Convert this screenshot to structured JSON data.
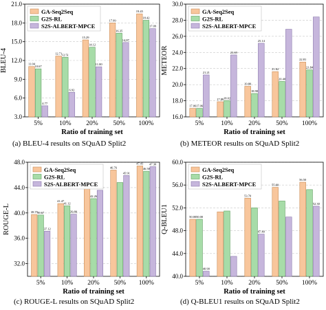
{
  "series_names": [
    "GA-Seq2Seq",
    "G2S-RL",
    "S2S-ALBERT-MPCE"
  ],
  "colors": {
    "ga": "#f8c69c",
    "g2s": "#a7dca8",
    "s2s": "#c6b6dc",
    "ga_edge": "#c98d58",
    "g2s_edge": "#5f9e5f",
    "s2s_edge": "#8b78ad"
  },
  "captions": {
    "a": "(a)  BLEU-4 results on SQuAD Split2",
    "b": "(b)  METEOR results on SQuAD Split2",
    "c": "(c)  ROUGE-L results on SQuAD Split2",
    "d": "(d)  Q-BLEU1 results on SQuAD Split2"
  },
  "chart_data": [
    {
      "id": "a",
      "type": "bar",
      "title": "",
      "xlabel": "Ratio of training set",
      "ylabel": "BLEU-4",
      "categories": [
        "5%",
        "10%",
        "20%",
        "50%",
        "100%"
      ],
      "ylim": [
        3.0,
        21.0
      ],
      "yticks": [
        "3.0",
        "6.0",
        "9.0",
        "12.0",
        "15.0",
        "18.0",
        "21.0"
      ],
      "legend": "top-left",
      "series": [
        {
          "name": "GA-Seq2Seq",
          "values": [
            11.04,
            12.71,
            15.29,
            17.99,
            19.45
          ],
          "labels": [
            "11.04",
            "12.71",
            "15.29",
            "17.99",
            "19.45"
          ]
        },
        {
          "name": "G2S-RL",
          "values": [
            10.67,
            12.51,
            14.12,
            16.35,
            18.42
          ],
          "labels": [
            "10.67",
            "12.51",
            "14.12",
            "16.35",
            "18.42"
          ]
        },
        {
          "name": "S2S-ALBERT-MPCE",
          "values": [
            4.77,
            6.92,
            11.0,
            14.87,
            17.09
          ],
          "labels": [
            "4.77",
            "6.92",
            "11.00",
            "14.87",
            "17.09"
          ]
        }
      ]
    },
    {
      "id": "b",
      "type": "bar",
      "title": "",
      "xlabel": "Ratio of training set",
      "ylabel": "METEOR",
      "categories": [
        "5%",
        "10%",
        "20%",
        "50%",
        "100%"
      ],
      "ylim": [
        16.0,
        30.0
      ],
      "yticks": [
        "16.0",
        "18.0",
        "20.0",
        "22.0",
        "24.0",
        "26.0",
        "28.0",
        "30.0"
      ],
      "legend": "top-left",
      "series": [
        {
          "name": "GA-Seq2Seq",
          "values": [
            17.06,
            17.88,
            19.8,
            21.62,
            22.81
          ],
          "labels": [
            "17.06",
            "17.88",
            "19.80",
            "21.62",
            "22.81"
          ]
        },
        {
          "name": "G2S-RL",
          "values": [
            17.06,
            18.02,
            18.9,
            20.4,
            21.84
          ],
          "labels": [
            "17.06",
            "18.02",
            "18.90",
            "20.40",
            "21.84"
          ]
        },
        {
          "name": "S2S-ALBERT-MPCE",
          "values": [
            21.21,
            23.69,
            25.14,
            26.88,
            28.41
          ],
          "labels": [
            "21.21",
            "23.69",
            "25.14",
            "",
            ""
          ]
        }
      ]
    },
    {
      "id": "c",
      "type": "bar",
      "title": "",
      "xlabel": "Ratio of training set",
      "ylabel": "ROUGE-L",
      "categories": [
        "5%",
        "10%",
        "20%",
        "50%",
        "100%"
      ],
      "ylim": [
        30.0,
        48.0
      ],
      "yticks": [
        "32.0",
        "36.0",
        "40.0",
        "44.0",
        "48.0"
      ],
      "legend": "top-left",
      "series": [
        {
          "name": "GA-Seq2Seq",
          "values": [
            39.75,
            41.47,
            44.33,
            46.76,
            47.41
          ],
          "labels": [
            "39.75",
            "41.47",
            "44.33",
            "46.76",
            "47.41"
          ]
        },
        {
          "name": "G2S-RL",
          "values": [
            39.67,
            41.12,
            42.26,
            44.8,
            46.58
          ],
          "labels": [
            "39.67",
            "41.12",
            "42.26",
            "",
            "46.58"
          ]
        },
        {
          "name": "S2S-ALBERT-MPCE",
          "values": [
            37.12,
            39.8,
            43.57,
            45.91,
            47.3
          ],
          "labels": [
            "37.12",
            "39.80",
            "43.57",
            "45.91",
            "47.30"
          ]
        }
      ]
    },
    {
      "id": "d",
      "type": "bar",
      "title": "",
      "xlabel": "Ratio of training set",
      "ylabel": "Q-BLEU1",
      "categories": [
        "5%",
        "10%",
        "20%",
        "50%",
        "100%"
      ],
      "ylim": [
        40.0,
        60.0
      ],
      "yticks": [
        "40.0",
        "44.0",
        "48.0",
        "52.0",
        "56.0",
        "60.0"
      ],
      "legend": "top-left",
      "series": [
        {
          "name": "GA-Seq2Seq",
          "values": [
            50.0,
            51.3,
            53.7,
            55.6,
            56.5
          ],
          "labels": [
            "50.00",
            "",
            "53.70",
            "55.60",
            "56.50"
          ]
        },
        {
          "name": "G2S-RL",
          "values": [
            50.0,
            51.45,
            52.0,
            53.2,
            55.2
          ],
          "labels": [
            "50.00",
            "",
            "",
            "",
            ""
          ]
        },
        {
          "name": "S2S-ALBERT-MPCE",
          "values": [
            40.9,
            43.5,
            47.4,
            50.4,
            52.3
          ],
          "labels": [
            "40.90",
            "",
            "47.40",
            "",
            "52.30"
          ]
        }
      ]
    }
  ]
}
